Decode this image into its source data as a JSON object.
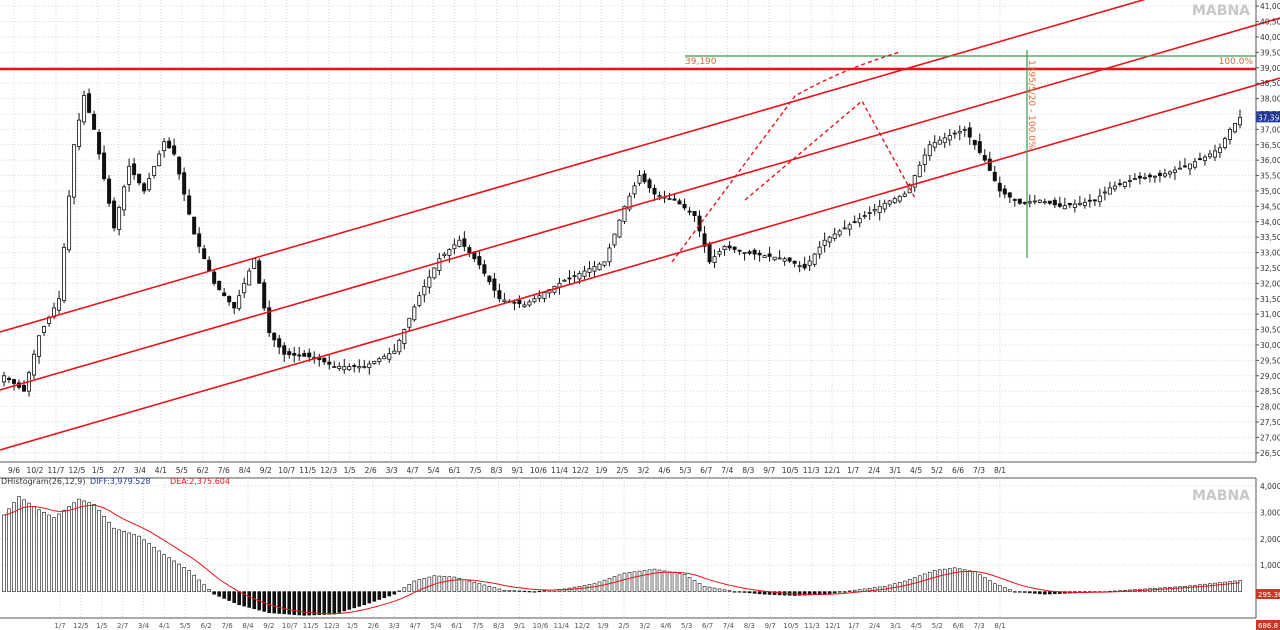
{
  "watermark": "MABNA",
  "colors": {
    "background": "#ffffff",
    "grid": "#d8d8d8",
    "channel": "#e8141b",
    "fib": "#3a9a4a",
    "price_tag": "#1f3aa8",
    "signal": "#e8141b",
    "label": "#d86a3a"
  },
  "chart_data": [
    {
      "type": "candlestick",
      "y_tick_labels": [
        "41,000",
        "40,500",
        "40,000",
        "39,500",
        "39,000",
        "38,500",
        "38,000",
        "37,500",
        "37,000",
        "36,500",
        "36,000",
        "35,500",
        "35,000",
        "34,500",
        "34,000",
        "33,500",
        "33,000",
        "32,500",
        "32,000",
        "31,500",
        "31,000",
        "30,500",
        "30,000",
        "29,500",
        "29,000",
        "28,500",
        "28,000",
        "27,500",
        "27,000",
        "26,500"
      ],
      "ylim": [
        26200,
        41200
      ],
      "x_tick_labels": [
        "9/6",
        "10/2",
        "11/7",
        "12/5",
        "1/5",
        "2/7",
        "3/4",
        "4/1",
        "5/5",
        "6/2",
        "7/6",
        "8/4",
        "9/2",
        "10/7",
        "11/5",
        "12/3",
        "1/5",
        "2/6",
        "3/3",
        "4/7",
        "5/4",
        "6/1",
        "7/5",
        "8/3",
        "9/1",
        "10/6",
        "11/4",
        "12/2",
        "1/9",
        "2/5",
        "3/2",
        "4/6",
        "5/3",
        "6/7",
        "7/4",
        "8/3",
        "9/7",
        "10/5",
        "11/3",
        "12/1",
        "1/7",
        "2/4",
        "3/1",
        "4/5",
        "5/2",
        "6/6",
        "7/3",
        "8/1"
      ],
      "last_price_label": "37,390",
      "annotations": {
        "horizontal_level": "39,190",
        "fib_level": "100.0%",
        "measure": "1395/5/20 - 100.0%"
      },
      "anchors": [
        {
          "i": 0,
          "p": 29000
        },
        {
          "i": 4,
          "p": 28500
        },
        {
          "i": 7,
          "p": 30300
        },
        {
          "i": 11,
          "p": 31500
        },
        {
          "i": 14,
          "p": 36500
        },
        {
          "i": 16,
          "p": 38100
        },
        {
          "i": 18,
          "p": 37000
        },
        {
          "i": 22,
          "p": 33800
        },
        {
          "i": 25,
          "p": 35800
        },
        {
          "i": 28,
          "p": 35000
        },
        {
          "i": 32,
          "p": 36600
        },
        {
          "i": 34,
          "p": 36200
        },
        {
          "i": 38,
          "p": 33600
        },
        {
          "i": 42,
          "p": 32000
        },
        {
          "i": 46,
          "p": 31200
        },
        {
          "i": 50,
          "p": 32800
        },
        {
          "i": 53,
          "p": 30400
        },
        {
          "i": 56,
          "p": 29700
        },
        {
          "i": 62,
          "p": 29600
        },
        {
          "i": 66,
          "p": 29300
        },
        {
          "i": 72,
          "p": 29300
        },
        {
          "i": 78,
          "p": 29800
        },
        {
          "i": 80,
          "p": 30500
        },
        {
          "i": 83,
          "p": 31600
        },
        {
          "i": 87,
          "p": 32800
        },
        {
          "i": 91,
          "p": 33400
        },
        {
          "i": 95,
          "p": 32600
        },
        {
          "i": 99,
          "p": 31500
        },
        {
          "i": 104,
          "p": 31300
        },
        {
          "i": 108,
          "p": 31700
        },
        {
          "i": 112,
          "p": 32100
        },
        {
          "i": 116,
          "p": 32400
        },
        {
          "i": 120,
          "p": 32700
        },
        {
          "i": 124,
          "p": 34500
        },
        {
          "i": 127,
          "p": 35500
        },
        {
          "i": 130,
          "p": 34900
        },
        {
          "i": 134,
          "p": 34700
        },
        {
          "i": 138,
          "p": 34200
        },
        {
          "i": 141,
          "p": 32700
        },
        {
          "i": 144,
          "p": 33200
        },
        {
          "i": 148,
          "p": 33000
        },
        {
          "i": 152,
          "p": 32900
        },
        {
          "i": 156,
          "p": 32800
        },
        {
          "i": 160,
          "p": 32500
        },
        {
          "i": 164,
          "p": 33400
        },
        {
          "i": 168,
          "p": 33800
        },
        {
          "i": 172,
          "p": 34200
        },
        {
          "i": 176,
          "p": 34600
        },
        {
          "i": 180,
          "p": 34900
        },
        {
          "i": 182,
          "p": 35500
        },
        {
          "i": 185,
          "p": 36500
        },
        {
          "i": 189,
          "p": 36800
        },
        {
          "i": 192,
          "p": 37000
        },
        {
          "i": 196,
          "p": 36000
        },
        {
          "i": 199,
          "p": 35000
        },
        {
          "i": 203,
          "p": 34600
        },
        {
          "i": 207,
          "p": 34700
        },
        {
          "i": 211,
          "p": 34500
        },
        {
          "i": 215,
          "p": 34600
        },
        {
          "i": 218,
          "p": 34700
        },
        {
          "i": 221,
          "p": 35100
        },
        {
          "i": 226,
          "p": 35400
        },
        {
          "i": 231,
          "p": 35500
        },
        {
          "i": 236,
          "p": 35800
        },
        {
          "i": 240,
          "p": 36100
        },
        {
          "i": 243,
          "p": 36400
        },
        {
          "i": 245,
          "p": 37000
        },
        {
          "i": 247,
          "p": 37390
        }
      ]
    },
    {
      "type": "bar",
      "title": "DHistogram(26,12,9)",
      "diff_label": "DIFF:3,979.528",
      "dea_label": "DEA:2,375.604",
      "y_tick_labels": [
        "4,000",
        "3,000",
        "2,000",
        "1,000"
      ],
      "ylim": [
        -1000,
        4300
      ],
      "value_labels": [
        "295.36",
        "686.8"
      ],
      "x_tick_labels": [
        "1/7",
        "12/5",
        "1/5",
        "2/7",
        "3/4",
        "4/1",
        "5/5",
        "6/2",
        "7/6",
        "8/4",
        "9/2",
        "10/7",
        "11/5",
        "12/3",
        "1/5",
        "2/6",
        "3/3",
        "4/7",
        "5/4",
        "6/1",
        "7/5",
        "8/3",
        "9/1",
        "10/6",
        "11/4",
        "12/2",
        "1/9",
        "2/5",
        "3/2",
        "4/6",
        "5/3",
        "6/7",
        "7/4",
        "8/3",
        "9/7",
        "10/5",
        "11/3",
        "12/1",
        "1/7",
        "2/4",
        "3/1",
        "4/5",
        "5/2",
        "6/6",
        "7/3",
        "8/1"
      ],
      "anchors": [
        {
          "i": 0,
          "p": 2900
        },
        {
          "i": 3,
          "p": 3600
        },
        {
          "i": 7,
          "p": 3100
        },
        {
          "i": 10,
          "p": 2800
        },
        {
          "i": 15,
          "p": 3500
        },
        {
          "i": 18,
          "p": 3300
        },
        {
          "i": 22,
          "p": 2400
        },
        {
          "i": 27,
          "p": 2100
        },
        {
          "i": 32,
          "p": 1400
        },
        {
          "i": 37,
          "p": 800
        },
        {
          "i": 42,
          "p": -100
        },
        {
          "i": 47,
          "p": -500
        },
        {
          "i": 53,
          "p": -800
        },
        {
          "i": 60,
          "p": -900
        },
        {
          "i": 66,
          "p": -850
        },
        {
          "i": 72,
          "p": -500
        },
        {
          "i": 78,
          "p": -100
        },
        {
          "i": 82,
          "p": 400
        },
        {
          "i": 86,
          "p": 600
        },
        {
          "i": 90,
          "p": 550
        },
        {
          "i": 95,
          "p": 300
        },
        {
          "i": 100,
          "p": 50
        },
        {
          "i": 106,
          "p": 0
        },
        {
          "i": 112,
          "p": 100
        },
        {
          "i": 118,
          "p": 300
        },
        {
          "i": 124,
          "p": 700
        },
        {
          "i": 130,
          "p": 850
        },
        {
          "i": 136,
          "p": 650
        },
        {
          "i": 140,
          "p": 200
        },
        {
          "i": 146,
          "p": 0
        },
        {
          "i": 152,
          "p": -100
        },
        {
          "i": 158,
          "p": -150
        },
        {
          "i": 164,
          "p": -100
        },
        {
          "i": 170,
          "p": 50
        },
        {
          "i": 176,
          "p": 200
        },
        {
          "i": 180,
          "p": 400
        },
        {
          "i": 186,
          "p": 800
        },
        {
          "i": 190,
          "p": 900
        },
        {
          "i": 194,
          "p": 750
        },
        {
          "i": 198,
          "p": 300
        },
        {
          "i": 202,
          "p": 0
        },
        {
          "i": 208,
          "p": -100
        },
        {
          "i": 214,
          "p": -50
        },
        {
          "i": 220,
          "p": 0
        },
        {
          "i": 228,
          "p": 100
        },
        {
          "i": 236,
          "p": 200
        },
        {
          "i": 242,
          "p": 320
        },
        {
          "i": 247,
          "p": 420
        }
      ]
    }
  ]
}
